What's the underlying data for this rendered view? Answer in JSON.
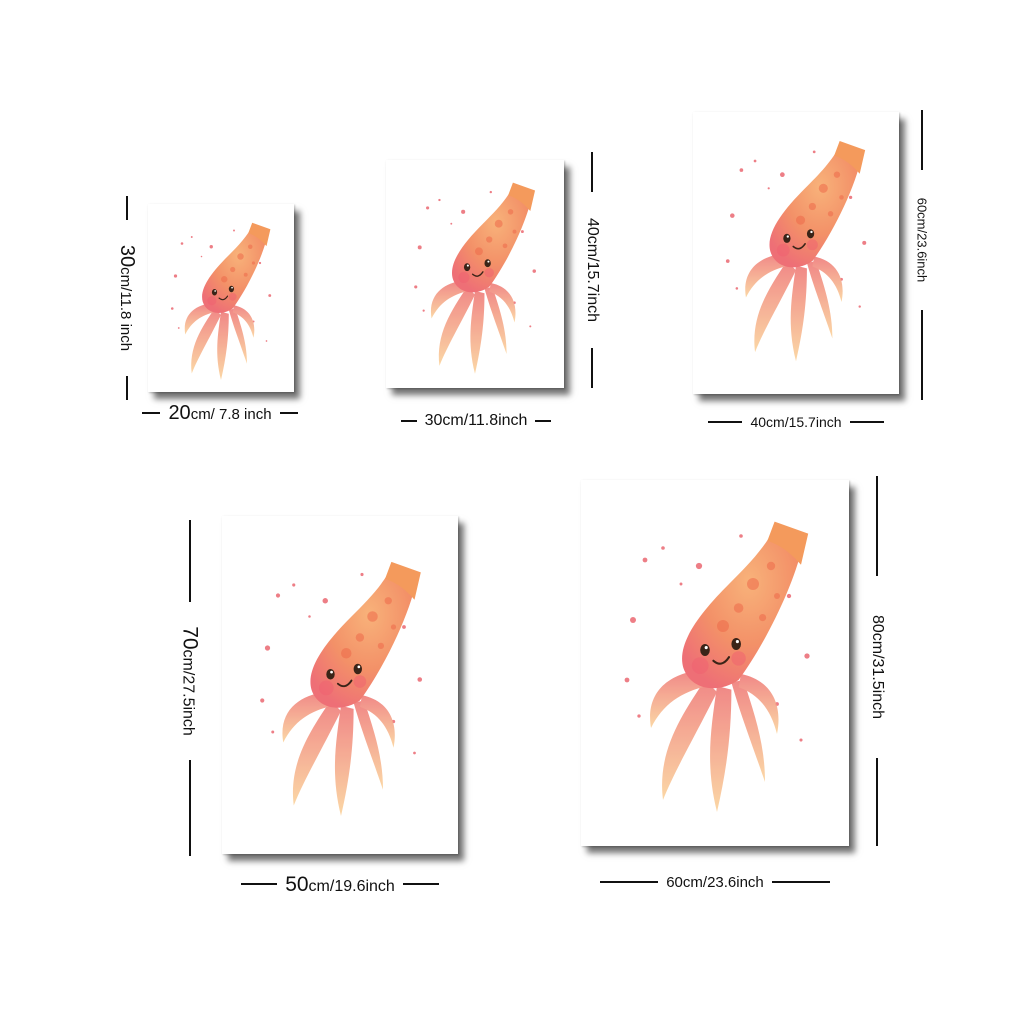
{
  "colors": {
    "ink": "#111111",
    "squid_body": "#f59a6c",
    "squid_light": "#fcd7a3",
    "squid_pink": "#ef6f7c",
    "splatter": "#e8535e"
  },
  "illustration": {
    "subject": "watercolor-squid",
    "icon": "squid-icon"
  },
  "sizes": [
    {
      "id": "20x30",
      "width_big": "20",
      "width_unit": "cm/ 7.8 inch",
      "height_big": "30",
      "height_unit": "cm/11.8 inch"
    },
    {
      "id": "30x40",
      "width_big": "",
      "width_unit": "30cm/11.8inch",
      "height_big": "",
      "height_unit": "40cm/15.7inch"
    },
    {
      "id": "40x60",
      "width_big": "",
      "width_unit": "40cm/15.7inch",
      "height_big": "",
      "height_unit": "60cm/23.6inch"
    },
    {
      "id": "50x70",
      "width_big": "50",
      "width_unit": "cm/19.6inch",
      "height_big": "70",
      "height_unit": "cm/27.5inch"
    },
    {
      "id": "60x80",
      "width_big": "",
      "width_unit": "60cm/23.6inch",
      "height_big": "",
      "height_unit": "80cm/31.5inch"
    }
  ]
}
